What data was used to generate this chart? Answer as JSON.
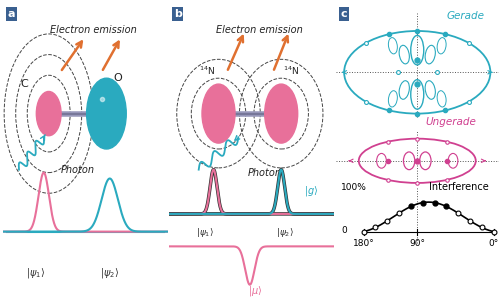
{
  "bg_color_ab": "#b8dce8",
  "bg_color_c": "#ffffff",
  "panel_a_label": "a",
  "panel_b_label": "b",
  "panel_c_label": "c",
  "title_a": "Electron emission",
  "title_b": "Electron emission",
  "photon_label_a": "Photon",
  "photon_label_b": "Photon",
  "atom_a_left_label": "C",
  "atom_a_right_label": "O",
  "atom_b_left_label": "$^{14}$N",
  "atom_b_right_label": "$^{14}$N",
  "psi1_label": "$|\\psi_1\\rangle$",
  "psi2_label": "$|\\psi_2\\rangle$",
  "psi1_label_b": "$|\\psi_1\\rangle$",
  "psi2_label_b": "$|\\psi_2\\rangle$",
  "g_label": "$|g\\rangle$",
  "mu_label": "$|\\mu\\rangle$",
  "gerade_label": "Gerade",
  "ungerade_label": "Ungerade",
  "interference_label": "Interference",
  "c_xticks": [
    "180°",
    "90°",
    "0°"
  ],
  "c_ytick_100": "100%",
  "c_ytick_0": "0",
  "pink_color": "#e8709a",
  "teal_color": "#2aaabf",
  "orange_color": "#e07030",
  "magenta_color": "#d04090",
  "dark_teal": "#1a8a9a",
  "label_blue": "#2060a0"
}
